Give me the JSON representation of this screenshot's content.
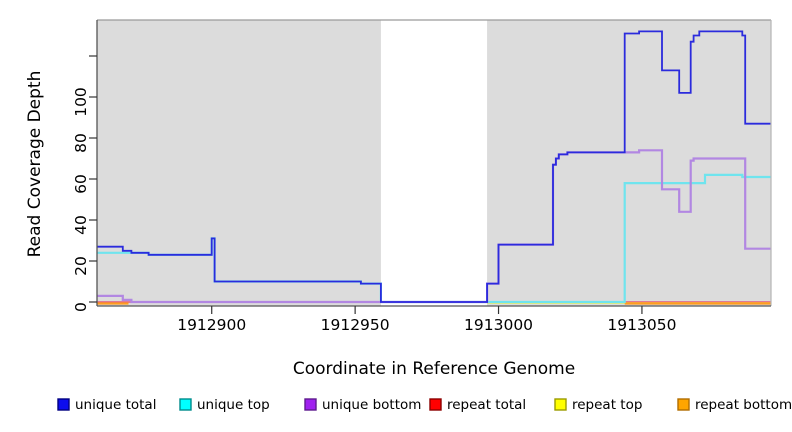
{
  "chart_data": {
    "type": "line",
    "step": true,
    "title": "",
    "xlabel": "Coordinate in Reference Genome",
    "ylabel": "Read Coverage Depth",
    "xlim": [
      1912860,
      1913095
    ],
    "ylim": [
      -2,
      137.5
    ],
    "x_ticks": [
      1912900,
      1912950,
      1913000,
      1913050
    ],
    "x_tick_labels": [
      "1912900",
      "1912950",
      "1913000",
      "1913050"
    ],
    "y_ticks_labeled": [
      0,
      20,
      40,
      60,
      80,
      100
    ],
    "y_tick_labels": [
      "0",
      "20",
      "40",
      "60",
      "80",
      "100"
    ],
    "y_ticks_unlabeled": [
      120
    ],
    "plot_bg": "#dcdcdc",
    "page_bg": "#ffffff",
    "gap_region": {
      "from": 1912959,
      "to": 1912996,
      "color": "#ffffff"
    },
    "legend_position": "bottom",
    "grid": false,
    "series": [
      {
        "name": "unique total",
        "color": "#2b2bdd",
        "legend_fill": "#0d0dee",
        "legend_border": "#000080",
        "width": 1.8,
        "z": 6,
        "points": [
          [
            1912860,
            27
          ],
          [
            1912869,
            25
          ],
          [
            1912872,
            24
          ],
          [
            1912878,
            23
          ],
          [
            1912900,
            31
          ],
          [
            1912901,
            10
          ],
          [
            1912952,
            9
          ],
          [
            1912959,
            0
          ],
          [
            1912996,
            9
          ],
          [
            1913000,
            28
          ],
          [
            1913019,
            67
          ],
          [
            1913020,
            70
          ],
          [
            1913021,
            72
          ],
          [
            1913024,
            73
          ],
          [
            1913044,
            131
          ],
          [
            1913049,
            132
          ],
          [
            1913057,
            113
          ],
          [
            1913063,
            102
          ],
          [
            1913067,
            127
          ],
          [
            1913068,
            130
          ],
          [
            1913070,
            132
          ],
          [
            1913085,
            130
          ],
          [
            1913086,
            87
          ]
        ],
        "end": 1913095
      },
      {
        "name": "unique top",
        "color": "#6fe4ee",
        "legend_fill": "#00ffff",
        "legend_border": "#008b8b",
        "width": 2.2,
        "z": 4,
        "points": [
          [
            1912860,
            24
          ],
          [
            1912878,
            23
          ],
          [
            1912900,
            31
          ],
          [
            1912901,
            10
          ],
          [
            1912952,
            9
          ],
          [
            1912959,
            0
          ],
          [
            1913044,
            58
          ],
          [
            1913072,
            62
          ],
          [
            1913085,
            61
          ]
        ],
        "end": 1913095
      },
      {
        "name": "unique bottom",
        "color": "#b287e2",
        "legend_fill": "#a020f0",
        "legend_border": "#5e1b8e",
        "width": 2.2,
        "z": 5,
        "points": [
          [
            1912860,
            3
          ],
          [
            1912869,
            1
          ],
          [
            1912872,
            0
          ],
          [
            1912996,
            9
          ],
          [
            1913000,
            28
          ],
          [
            1913019,
            67
          ],
          [
            1913020,
            70
          ],
          [
            1913021,
            72
          ],
          [
            1913024,
            73
          ],
          [
            1913049,
            74
          ],
          [
            1913057,
            55
          ],
          [
            1913063,
            44
          ],
          [
            1913067,
            69
          ],
          [
            1913068,
            70
          ],
          [
            1913086,
            26
          ]
        ],
        "end": 1913095
      },
      {
        "name": "repeat total",
        "color": "#e25a7e",
        "legend_fill": "#ff0000",
        "legend_border": "#8b0000",
        "width": 1.4,
        "z": 1,
        "points": [
          [
            1912860,
            0
          ]
        ],
        "end": 1913095
      },
      {
        "name": "repeat top",
        "color": "#ecec4f",
        "legend_fill": "#ffff00",
        "legend_border": "#9b9b00",
        "width": 1.4,
        "z": 2,
        "dy": 1,
        "segments": [
          {
            "points": [
              [
                1912996,
                0
              ]
            ],
            "end": 1913095
          }
        ]
      },
      {
        "name": "repeat bottom",
        "color": "#ff9d1f",
        "legend_fill": "#ffa500",
        "legend_border": "#b06d00",
        "width": 2.2,
        "z": 3,
        "dy": 1.5,
        "segments": [
          {
            "points": [
              [
                1912860,
                0
              ]
            ],
            "end": 1912871
          },
          {
            "points": [
              [
                1913044,
                0
              ]
            ],
            "end": 1913095
          }
        ]
      }
    ]
  }
}
